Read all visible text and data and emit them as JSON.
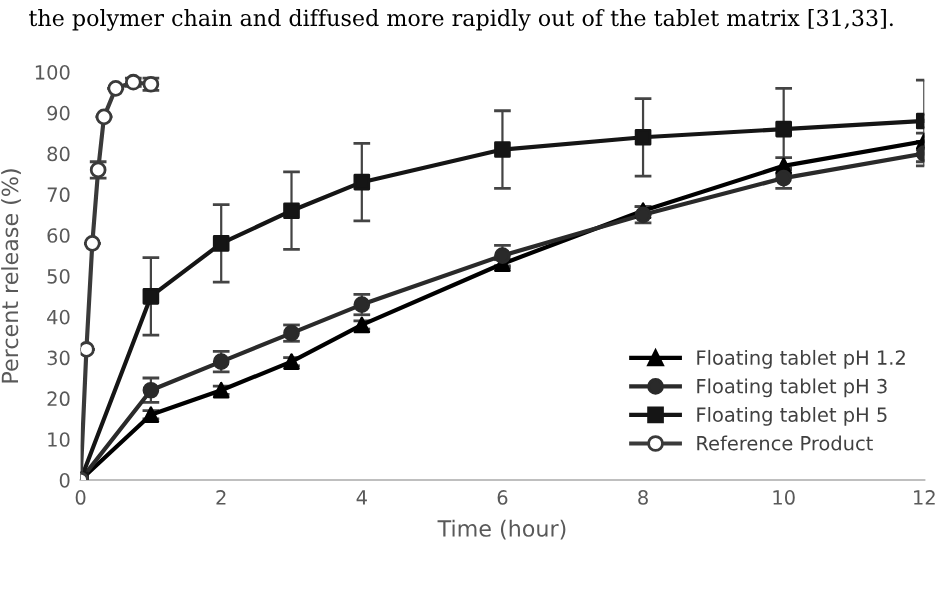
{
  "chart_data": {
    "type": "line",
    "xlabel": "Time (hour)",
    "ylabel": "Percent release (%)",
    "annotations": [
      "the polymer chain and diffused more rapidly out of the tablet matrix [31,33]."
    ],
    "xlim": [
      0,
      12
    ],
    "xticks": [
      0,
      2,
      4,
      6,
      8,
      10,
      12
    ],
    "ylim": [
      0,
      100
    ],
    "yticks": [
      0,
      10,
      20,
      30,
      40,
      50,
      60,
      70,
      80,
      90,
      100
    ],
    "grid": false,
    "legend": "bottom right",
    "series": [
      {
        "name": "Floating tablet pH 1.2",
        "color": "#000000",
        "marker": "triangle",
        "x": [
          0,
          1,
          2,
          3,
          4,
          6,
          8,
          10,
          12
        ],
        "values": [
          0,
          16,
          22,
          29,
          38,
          53,
          66,
          77,
          83
        ],
        "errors": [
          null,
          1,
          1,
          1,
          1,
          1,
          1,
          2,
          2
        ]
      },
      {
        "name": "Floating tablet pH 3",
        "color": "#2a2a2a",
        "marker": "circle",
        "x": [
          0,
          1,
          2,
          3,
          4,
          6,
          8,
          10,
          12
        ],
        "values": [
          0,
          22,
          29,
          36,
          43,
          55,
          65,
          74,
          80
        ],
        "errors": [
          null,
          3,
          2.5,
          2,
          2.5,
          2.5,
          2,
          2.5,
          3
        ]
      },
      {
        "name": "Floating tablet pH 5",
        "color": "#151515",
        "marker": "square",
        "x": [
          0,
          1,
          2,
          3,
          4,
          6,
          8,
          10,
          12
        ],
        "values": [
          0,
          45,
          58,
          66,
          73,
          81,
          84,
          86,
          88
        ],
        "errors": [
          null,
          9.5,
          9.5,
          9.5,
          9.5,
          9.5,
          9.5,
          10,
          10
        ]
      },
      {
        "name": "Reference Product",
        "color": "#3a3a3a",
        "marker": "circle",
        "colors": [
          "#ffffff",
          "#ffffff",
          "#ffffff",
          "#ffffff",
          "#ffffff",
          "#ffffff",
          "#ffffff",
          "#ffffff"
        ],
        "x": [
          0,
          0.083,
          0.167,
          0.25,
          0.333,
          0.5,
          0.75,
          1
        ],
        "values": [
          0,
          32,
          58,
          76,
          89,
          96,
          97.5,
          97
        ],
        "errors": [
          null,
          null,
          null,
          2,
          null,
          null,
          1,
          1.5
        ]
      }
    ]
  }
}
